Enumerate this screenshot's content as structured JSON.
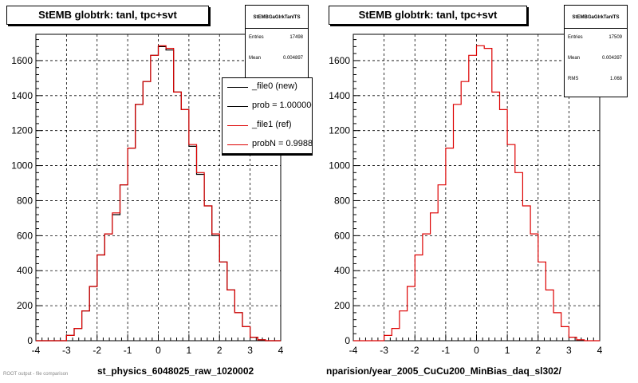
{
  "chart_data": [
    {
      "type": "bar",
      "title": "StEMB globtrk: tanl, tpc+svt",
      "xlabel": "st_physics_6048025_raw_1020002",
      "ylabel": "",
      "xlim": [
        -4,
        4
      ],
      "ylim": [
        0,
        1750
      ],
      "x_ticks": [
        "-4",
        "-3",
        "-2",
        "-1",
        "0",
        "1",
        "2",
        "3",
        "4"
      ],
      "y_ticks": [
        "0",
        "200",
        "400",
        "600",
        "800",
        "1000",
        "1200",
        "1400",
        "1600"
      ],
      "grid": true,
      "bin_edges": [
        -4,
        -3.75,
        -3.5,
        -3.25,
        -3,
        -2.75,
        -2.5,
        -2.25,
        -2,
        -1.75,
        -1.5,
        -1.25,
        -1,
        -0.75,
        -0.5,
        -0.25,
        0,
        0.25,
        0.5,
        0.75,
        1,
        1.25,
        1.5,
        1.75,
        2,
        2.25,
        2.5,
        2.75,
        3,
        3.25,
        3.5,
        3.75,
        4
      ],
      "series": [
        {
          "name": "_file0 (new)",
          "color": "#000000",
          "values": [
            0,
            0,
            0,
            0,
            30,
            70,
            170,
            310,
            490,
            610,
            720,
            890,
            1100,
            1350,
            1480,
            1630,
            1680,
            1660,
            1420,
            1320,
            1110,
            950,
            770,
            600,
            450,
            290,
            160,
            80,
            20,
            5,
            0,
            0
          ]
        },
        {
          "name": "_file1 (ref)",
          "color": "#dd0000",
          "values": [
            0,
            0,
            0,
            0,
            30,
            70,
            170,
            310,
            490,
            610,
            730,
            890,
            1100,
            1350,
            1480,
            1630,
            1685,
            1670,
            1420,
            1320,
            1120,
            960,
            770,
            610,
            450,
            290,
            160,
            80,
            20,
            5,
            0,
            0
          ]
        }
      ],
      "stats": {
        "name": "StEMBGaGlrkTanlTS",
        "entries_label": "Entries",
        "entries": "17498",
        "mean_label": "Mean",
        "mean": "0.004897"
      },
      "legend": {
        "position": "top-right",
        "entries": [
          "_file0 (new)",
          "prob = 1.000000",
          "_file1 (ref)",
          "probN = 0.99888"
        ],
        "colors": [
          "#000000",
          "#000000",
          "#dd0000",
          "#dd0000"
        ]
      }
    },
    {
      "type": "bar",
      "title": "StEMB globtrk: tanl, tpc+svt",
      "xlabel": "nparision/year_2005_CuCu200_MinBias_daq_sl302/",
      "ylabel": "",
      "xlim": [
        -4,
        4
      ],
      "ylim": [
        0,
        1750
      ],
      "x_ticks": [
        "-4",
        "-3",
        "-2",
        "-1",
        "0",
        "1",
        "2",
        "3",
        "4"
      ],
      "y_ticks": [
        "0",
        "200",
        "400",
        "600",
        "800",
        "1000",
        "1200",
        "1400",
        "1600"
      ],
      "grid": true,
      "bin_edges": [
        -4,
        -3.75,
        -3.5,
        -3.25,
        -3,
        -2.75,
        -2.5,
        -2.25,
        -2,
        -1.75,
        -1.5,
        -1.25,
        -1,
        -0.75,
        -0.5,
        -0.25,
        0,
        0.25,
        0.5,
        0.75,
        1,
        1.25,
        1.5,
        1.75,
        2,
        2.25,
        2.5,
        2.75,
        3,
        3.25,
        3.5,
        3.75,
        4
      ],
      "series": [
        {
          "name": "_file1 (ref)",
          "color": "#dd0000",
          "values": [
            0,
            0,
            0,
            0,
            30,
            70,
            170,
            310,
            490,
            610,
            730,
            890,
            1100,
            1350,
            1480,
            1630,
            1685,
            1670,
            1420,
            1320,
            1120,
            960,
            770,
            610,
            450,
            290,
            160,
            80,
            20,
            5,
            0,
            0
          ]
        }
      ],
      "stats": {
        "name": "StEMBGaGlrkTanlTS",
        "entries_label": "Entries",
        "entries": "17509",
        "mean_label": "Mean",
        "mean": "0.004397",
        "rms_label": "RMS",
        "rms": "1.068"
      }
    }
  ],
  "footer": "ROOT output - file comparison"
}
